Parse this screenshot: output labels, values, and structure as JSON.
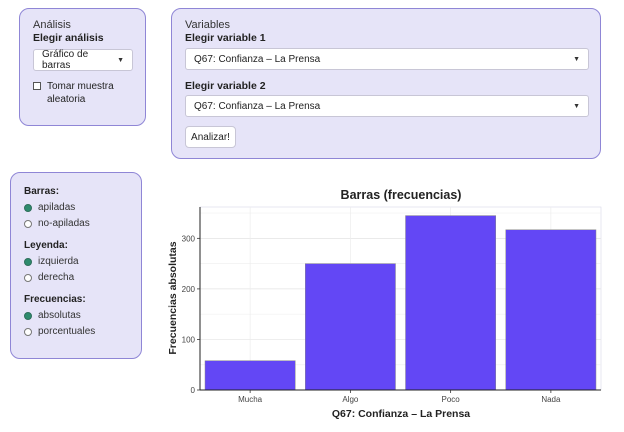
{
  "analysis": {
    "heading": "Análisis",
    "label": "Elegir análisis",
    "select_value": "Gráfico de barras",
    "sample_checkbox_label": "Tomar muestra aleatoria",
    "sample_checked": false
  },
  "variables": {
    "heading": "Variables",
    "var1_label": "Elegir variable 1",
    "var1_value": "Q67: Confianza – La Prensa",
    "var2_label": "Elegir variable 2",
    "var2_value": "Q67: Confianza – La Prensa",
    "analyze_button": "Analizar!"
  },
  "options": {
    "groups": [
      {
        "label": "Barras:",
        "options": [
          {
            "label": "apiladas",
            "checked": true
          },
          {
            "label": "no-apiladas",
            "checked": false
          }
        ]
      },
      {
        "label": "Leyenda:",
        "options": [
          {
            "label": "izquierda",
            "checked": true
          },
          {
            "label": "derecha",
            "checked": false
          }
        ]
      },
      {
        "label": "Frecuencias:",
        "options": [
          {
            "label": "absolutas",
            "checked": true
          },
          {
            "label": "porcentuales",
            "checked": false
          }
        ]
      }
    ]
  },
  "chart_data": {
    "type": "bar",
    "title": "Barras (frecuencias)",
    "xlabel": "Q67: Confianza – La Prensa",
    "ylabel": "Frecuencias absolutas",
    "categories": [
      "Mucha",
      "Algo",
      "Poco",
      "Nada"
    ],
    "values": [
      58,
      250,
      345,
      317
    ],
    "ylim": [
      0,
      362
    ],
    "yticks": [
      0,
      100,
      200,
      300
    ],
    "grid": true,
    "bar_color": "#6347f5"
  }
}
